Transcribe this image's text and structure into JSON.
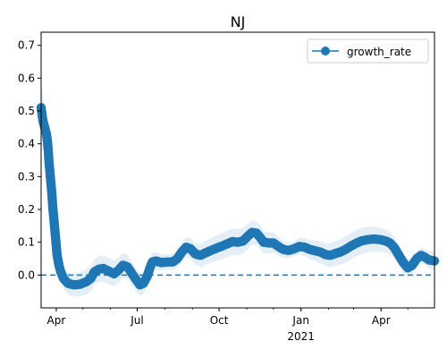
{
  "chart_data": {
    "type": "line",
    "title": "NJ",
    "xlabel": "",
    "ylabel": "",
    "x_range": [
      "2020-03-15",
      "2021-05-31"
    ],
    "ylim": [
      -0.1,
      0.74
    ],
    "yticks": [
      0.0,
      0.1,
      0.2,
      0.3,
      0.4,
      0.5,
      0.6,
      0.7
    ],
    "xticks": [
      {
        "date": "2020-04-01",
        "label": "Apr"
      },
      {
        "date": "2020-07-01",
        "label": "Jul"
      },
      {
        "date": "2020-10-01",
        "label": "Oct"
      },
      {
        "date": "2021-01-01",
        "label": "Jan",
        "sublabel": "2021"
      },
      {
        "date": "2021-04-01",
        "label": "Apr"
      }
    ],
    "grid": false,
    "legend": {
      "position": "top-right",
      "entries": [
        "growth_rate"
      ]
    },
    "reference_line": {
      "y": 0.0,
      "style": "dashed"
    },
    "colors": {
      "series": "#1f77b4",
      "band": "#1f77b4",
      "reference_line": "#1f77b4"
    },
    "series": [
      {
        "name": "growth_rate",
        "marker": "circle",
        "points": [
          [
            "2020-03-15",
            0.51
          ],
          [
            "2020-03-17",
            0.47
          ],
          [
            "2020-03-19",
            0.45
          ],
          [
            "2020-03-21",
            0.43
          ],
          [
            "2020-03-22",
            0.41
          ],
          [
            "2020-03-23",
            0.38
          ],
          [
            "2020-03-24",
            0.34
          ],
          [
            "2020-03-25",
            0.31
          ],
          [
            "2020-03-26",
            0.28
          ],
          [
            "2020-03-27",
            0.25
          ],
          [
            "2020-03-28",
            0.21
          ],
          [
            "2020-03-29",
            0.18
          ],
          [
            "2020-03-30",
            0.15
          ],
          [
            "2020-03-31",
            0.12
          ],
          [
            "2020-04-01",
            0.09
          ],
          [
            "2020-04-02",
            0.06
          ],
          [
            "2020-04-04",
            0.03
          ],
          [
            "2020-04-06",
            0.01
          ],
          [
            "2020-04-09",
            -0.01
          ],
          [
            "2020-04-14",
            -0.025
          ],
          [
            "2020-04-21",
            -0.03
          ],
          [
            "2020-04-28",
            -0.028
          ],
          [
            "2020-05-05",
            -0.02
          ],
          [
            "2020-05-10",
            -0.01
          ],
          [
            "2020-05-14",
            0.01
          ],
          [
            "2020-05-19",
            0.018
          ],
          [
            "2020-05-24",
            0.02
          ],
          [
            "2020-05-30",
            0.012
          ],
          [
            "2020-06-05",
            0.004
          ],
          [
            "2020-06-10",
            0.015
          ],
          [
            "2020-06-15",
            0.03
          ],
          [
            "2020-06-20",
            0.025
          ],
          [
            "2020-06-25",
            0.005
          ],
          [
            "2020-06-30",
            -0.015
          ],
          [
            "2020-07-04",
            -0.03
          ],
          [
            "2020-07-08",
            -0.025
          ],
          [
            "2020-07-12",
            -0.005
          ],
          [
            "2020-07-15",
            0.02
          ],
          [
            "2020-07-18",
            0.04
          ],
          [
            "2020-07-22",
            0.043
          ],
          [
            "2020-07-28",
            0.038
          ],
          [
            "2020-08-04",
            0.04
          ],
          [
            "2020-08-10",
            0.04
          ],
          [
            "2020-08-15",
            0.05
          ],
          [
            "2020-08-20",
            0.07
          ],
          [
            "2020-08-25",
            0.085
          ],
          [
            "2020-08-30",
            0.08
          ],
          [
            "2020-09-04",
            0.065
          ],
          [
            "2020-09-10",
            0.06
          ],
          [
            "2020-09-16",
            0.068
          ],
          [
            "2020-09-22",
            0.075
          ],
          [
            "2020-09-28",
            0.082
          ],
          [
            "2020-10-04",
            0.088
          ],
          [
            "2020-10-10",
            0.095
          ],
          [
            "2020-10-16",
            0.102
          ],
          [
            "2020-10-22",
            0.1
          ],
          [
            "2020-10-28",
            0.104
          ],
          [
            "2020-11-02",
            0.118
          ],
          [
            "2020-11-07",
            0.13
          ],
          [
            "2020-11-12",
            0.128
          ],
          [
            "2020-11-16",
            0.115
          ],
          [
            "2020-11-20",
            0.1
          ],
          [
            "2020-11-26",
            0.098
          ],
          [
            "2020-12-01",
            0.098
          ],
          [
            "2020-12-06",
            0.088
          ],
          [
            "2020-12-12",
            0.078
          ],
          [
            "2020-12-18",
            0.075
          ],
          [
            "2020-12-24",
            0.08
          ],
          [
            "2020-12-30",
            0.087
          ],
          [
            "2021-01-05",
            0.085
          ],
          [
            "2021-01-11",
            0.078
          ],
          [
            "2021-01-17",
            0.074
          ],
          [
            "2021-01-23",
            0.07
          ],
          [
            "2021-01-29",
            0.062
          ],
          [
            "2021-02-03",
            0.06
          ],
          [
            "2021-02-08",
            0.065
          ],
          [
            "2021-02-14",
            0.07
          ],
          [
            "2021-02-20",
            0.078
          ],
          [
            "2021-02-26",
            0.088
          ],
          [
            "2021-03-04",
            0.097
          ],
          [
            "2021-03-10",
            0.104
          ],
          [
            "2021-03-17",
            0.108
          ],
          [
            "2021-03-24",
            0.11
          ],
          [
            "2021-03-31",
            0.108
          ],
          [
            "2021-04-06",
            0.104
          ],
          [
            "2021-04-11",
            0.098
          ],
          [
            "2021-04-16",
            0.083
          ],
          [
            "2021-04-21",
            0.06
          ],
          [
            "2021-04-26",
            0.038
          ],
          [
            "2021-05-01",
            0.022
          ],
          [
            "2021-05-06",
            0.03
          ],
          [
            "2021-05-11",
            0.05
          ],
          [
            "2021-05-16",
            0.06
          ],
          [
            "2021-05-20",
            0.055
          ],
          [
            "2021-05-25",
            0.046
          ],
          [
            "2021-05-31",
            0.043
          ]
        ]
      }
    ]
  }
}
